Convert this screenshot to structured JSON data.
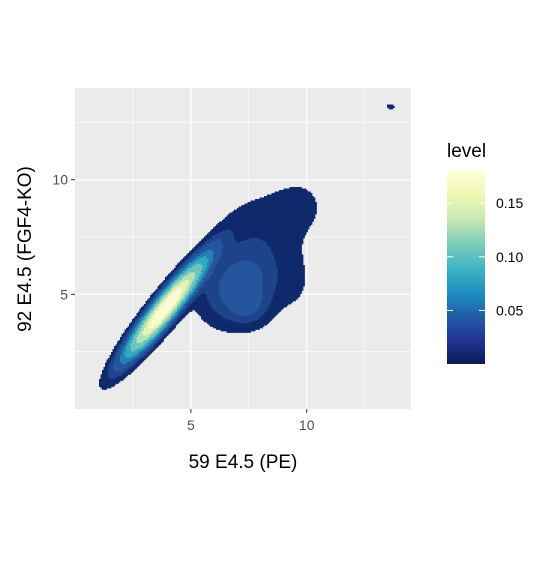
{
  "chart_data": {
    "type": "density-contour-filled",
    "xlabel": "59 E4.5 (PE)",
    "ylabel": "92 E4.5 (FGF4-KO)",
    "xlim": [
      0.0,
      14.5
    ],
    "ylim": [
      0.0,
      14.0
    ],
    "x_ticks": [
      5,
      10
    ],
    "y_ticks": [
      5,
      10
    ],
    "x_tick_labels": [
      "5",
      "10"
    ],
    "y_tick_labels": [
      "5",
      "10"
    ],
    "panel_background": "#ebebeb",
    "grid_color": "#ffffff",
    "grid": true,
    "legend": {
      "title": "level",
      "position": "right",
      "breaks": [
        0.05,
        0.1,
        0.15
      ],
      "break_labels": [
        "0.05",
        "0.10",
        "0.15"
      ],
      "range": [
        0.0,
        0.18
      ],
      "palette": [
        "#081d58",
        "#253494",
        "#225ea8",
        "#1d91c0",
        "#41b6c4",
        "#7fcdbb",
        "#c7e9b4",
        "#edf8b1",
        "#ffffd9"
      ]
    },
    "levels": [
      {
        "level": 0.005,
        "color": "#0f2a6c"
      },
      {
        "level": 0.012,
        "color": "#1d438a"
      },
      {
        "level": 0.02,
        "color": "#24559e"
      },
      {
        "level": 0.035,
        "color": "#2182b8"
      },
      {
        "level": 0.05,
        "color": "#33a8c2"
      },
      {
        "level": 0.07,
        "color": "#6ec5bc"
      },
      {
        "level": 0.1,
        "color": "#b6e0b5"
      },
      {
        "level": 0.13,
        "color": "#e4f3b2"
      },
      {
        "level": 0.16,
        "color": "#fafcd0"
      }
    ]
  }
}
